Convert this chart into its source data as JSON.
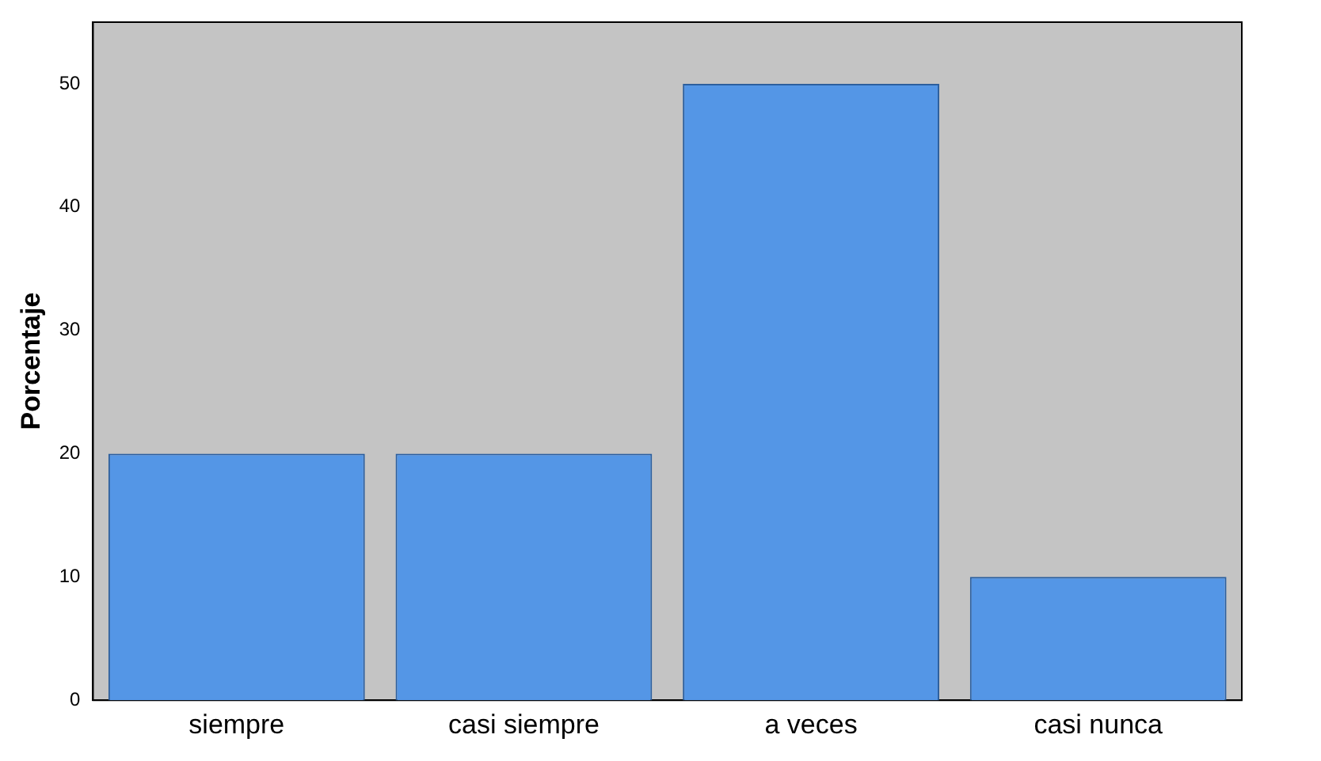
{
  "chart_data": {
    "type": "bar",
    "ylabel": "Porcentaje",
    "categories": [
      "siempre",
      "casi siempre",
      "a veces",
      "casi nunca"
    ],
    "values": [
      20,
      20,
      50,
      10
    ],
    "color": "#5496e6",
    "ylim": [
      0,
      55
    ],
    "yticks": [
      0,
      10,
      20,
      30,
      40,
      50
    ],
    "grid": false,
    "legend": false
  }
}
